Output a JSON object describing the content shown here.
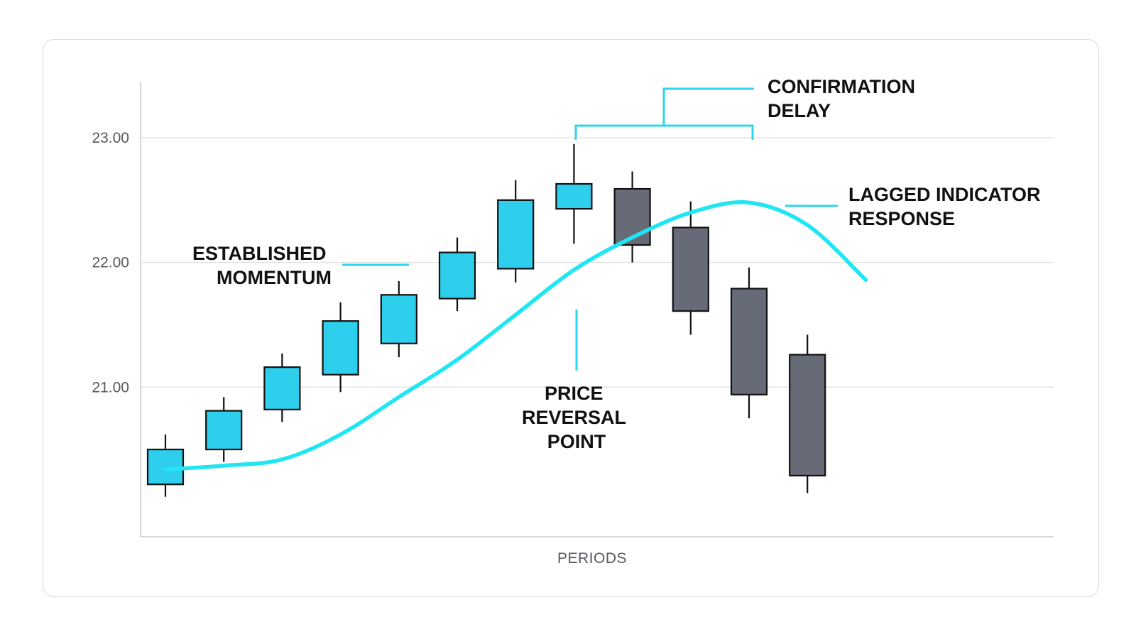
{
  "chart_data": {
    "type": "candlestick",
    "title": "",
    "xlabel": "PERIODS",
    "ylabel": "",
    "ylim": [
      19.8,
      23.45
    ],
    "yticks": [
      {
        "value": 21,
        "label": "21.00"
      },
      {
        "value": 22,
        "label": "22.00"
      },
      {
        "value": 23,
        "label": "23.00"
      }
    ],
    "grid": true,
    "colors": {
      "up": "#2dcfec",
      "down": "#676b78",
      "indicator": "#1fe6f2",
      "annotation_line": "#2dd5ee",
      "grid": "#dedede",
      "axis": "#c8c8c8",
      "outline": "#111111"
    },
    "candles": [
      {
        "x": 1,
        "open": 20.22,
        "high": 20.62,
        "low": 20.12,
        "close": 20.5
      },
      {
        "x": 2,
        "open": 20.5,
        "high": 20.92,
        "low": 20.4,
        "close": 20.81
      },
      {
        "x": 3,
        "open": 20.82,
        "high": 21.27,
        "low": 20.72,
        "close": 21.16
      },
      {
        "x": 4,
        "open": 21.1,
        "high": 21.68,
        "low": 20.96,
        "close": 21.53
      },
      {
        "x": 5,
        "open": 21.35,
        "high": 21.85,
        "low": 21.24,
        "close": 21.74
      },
      {
        "x": 6,
        "open": 21.71,
        "high": 22.2,
        "low": 21.61,
        "close": 22.08
      },
      {
        "x": 7,
        "open": 21.95,
        "high": 22.66,
        "low": 21.84,
        "close": 22.5
      },
      {
        "x": 8,
        "open": 22.43,
        "high": 22.95,
        "low": 22.15,
        "close": 22.63
      },
      {
        "x": 9,
        "open": 22.59,
        "high": 22.73,
        "low": 22.0,
        "close": 22.14
      },
      {
        "x": 10,
        "open": 22.28,
        "high": 22.49,
        "low": 21.42,
        "close": 21.61
      },
      {
        "x": 11,
        "open": 21.79,
        "high": 21.96,
        "low": 20.75,
        "close": 20.94
      },
      {
        "x": 12,
        "open": 21.26,
        "high": 21.42,
        "low": 20.15,
        "close": 20.29
      }
    ],
    "indicator": {
      "name": "",
      "x": [
        1,
        2,
        3,
        4,
        5,
        6,
        7,
        8,
        9,
        10,
        11,
        12,
        13
      ],
      "y": [
        20.34,
        20.37,
        20.42,
        20.62,
        20.92,
        21.22,
        21.58,
        21.94,
        22.2,
        22.4,
        22.48,
        22.3,
        21.86
      ]
    },
    "annotations": [
      {
        "id": "established-momentum",
        "lines": [
          "ESTABLISHED",
          "MOMENTUM"
        ]
      },
      {
        "id": "price-reversal-point",
        "lines": [
          "PRICE",
          "REVERSAL",
          "POINT"
        ]
      },
      {
        "id": "confirmation-delay",
        "lines": [
          "CONFIRMATION",
          "DELAY"
        ]
      },
      {
        "id": "lagged-indicator-response",
        "lines": [
          "LAGGED INDICATOR",
          "RESPONSE"
        ]
      }
    ]
  }
}
